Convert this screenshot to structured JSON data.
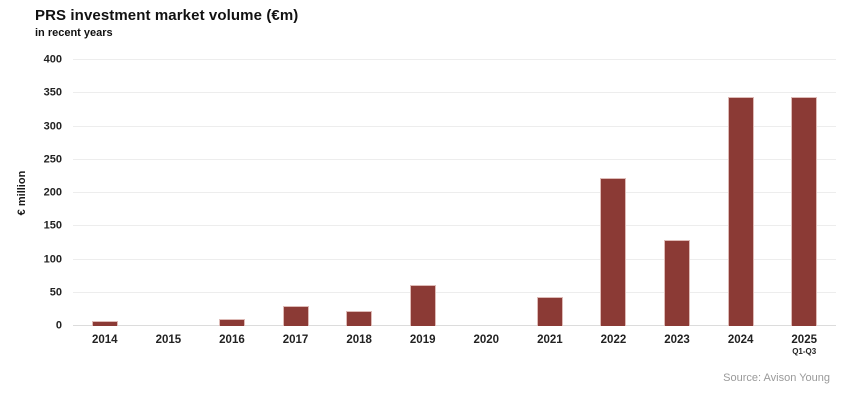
{
  "header": {
    "title": "PRS investment market volume (€m)",
    "subtitle": "in recent years"
  },
  "chart_data": {
    "type": "bar",
    "categories": [
      "2014",
      "2015",
      "2016",
      "2017",
      "2018",
      "2019",
      "2020",
      "2021",
      "2022",
      "2023",
      "2024",
      "2025"
    ],
    "category_sublabels": {
      "2025": "Q1-Q3"
    },
    "values": [
      7,
      0,
      11,
      30,
      23,
      62,
      0,
      43,
      222,
      129,
      345,
      345
    ],
    "title": "PRS investment market volume (€m)",
    "subtitle": "in recent years",
    "xlabel": "",
    "ylabel": "€ million",
    "yticks": [
      0,
      50,
      100,
      150,
      200,
      250,
      300,
      350,
      400
    ],
    "ylim": [
      0,
      400
    ],
    "grid": true,
    "legend": "none",
    "bar_color": "#8B3A35",
    "bar_border_color": "#DEBBB7"
  },
  "footer": {
    "source": "Source: Avison Young"
  }
}
